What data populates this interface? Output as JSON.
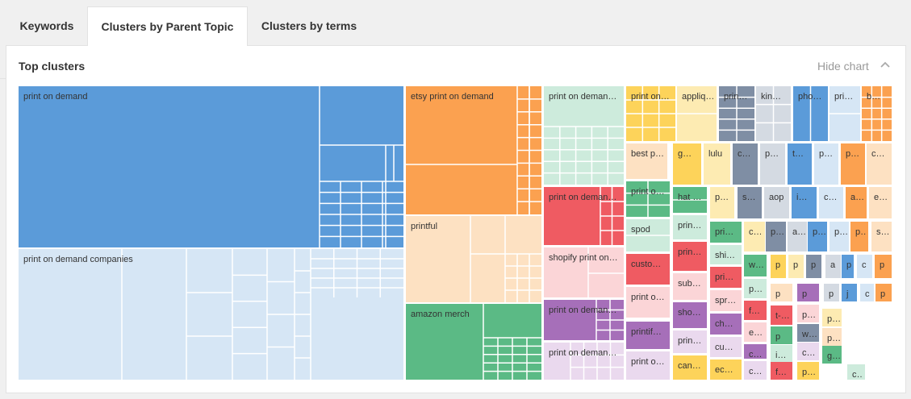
{
  "tabs": {
    "keywords": "Keywords",
    "parent_topic": "Clusters by Parent Topic",
    "terms": "Clusters by terms"
  },
  "card": {
    "title": "Top clusters",
    "hide_label": "Hide chart",
    "chevron_icon": "chevron-up-icon"
  },
  "colors": {
    "blue": "#5b9bd9",
    "light_blue": "#d6e6f5",
    "orange": "#fba150",
    "peach": "#fde1c2",
    "green": "#5bba85",
    "mint": "#cdebdc",
    "red": "#ef5b62",
    "pink": "#fbd5d7",
    "purple": "#a66fb9",
    "lilac": "#ead9ee",
    "yellow": "#fdd35a",
    "cream": "#fdebb2",
    "slate": "#7f8ea4",
    "gray": "#d4dae2"
  },
  "chart_data": {
    "type": "treemap",
    "title": "Top clusters",
    "nodes": [
      {
        "label": "print on demand",
        "color": "blue"
      },
      {
        "label": "print on demand companies",
        "color": "light_blue"
      },
      {
        "label": "etsy print on demand",
        "color": "orange"
      },
      {
        "label": "printful",
        "color": "peach"
      },
      {
        "label": "amazon merch",
        "color": "green"
      },
      {
        "label": "print on deman…",
        "color": "mint"
      },
      {
        "label": "print on deman…",
        "color": "red"
      },
      {
        "label": "shopify print on…",
        "color": "pink"
      },
      {
        "label": "print on deman…",
        "color": "purple"
      },
      {
        "label": "print on deman…",
        "color": "lilac"
      },
      {
        "label": "print on…",
        "color": "yellow"
      },
      {
        "label": "appliq…",
        "color": "cream"
      },
      {
        "label": "prin…",
        "color": "slate"
      },
      {
        "label": "kin…",
        "color": "gray"
      },
      {
        "label": "pho…",
        "color": "blue"
      },
      {
        "label": "pri…",
        "color": "light_blue"
      },
      {
        "label": "b…",
        "color": "orange"
      },
      {
        "label": "best p…",
        "color": "peach"
      },
      {
        "label": "print o…",
        "color": "green"
      },
      {
        "label": "spod",
        "color": "mint"
      },
      {
        "label": "custo…",
        "color": "red"
      },
      {
        "label": "print o…",
        "color": "pink"
      },
      {
        "label": "printif…",
        "color": "purple"
      },
      {
        "label": "print o…",
        "color": "lilac"
      },
      {
        "label": "g…",
        "color": "yellow"
      },
      {
        "label": "lulu",
        "color": "cream"
      },
      {
        "label": "c…",
        "color": "slate"
      },
      {
        "label": "p…",
        "color": "gray"
      },
      {
        "label": "t…",
        "color": "blue"
      },
      {
        "label": "p…",
        "color": "light_blue"
      },
      {
        "label": "p…",
        "color": "orange"
      },
      {
        "label": "c…",
        "color": "peach"
      },
      {
        "label": "hat …",
        "color": "green"
      },
      {
        "label": "prin…",
        "color": "mint"
      },
      {
        "label": "prin…",
        "color": "red"
      },
      {
        "label": "sub…",
        "color": "pink"
      },
      {
        "label": "sho…",
        "color": "purple"
      },
      {
        "label": "prin…",
        "color": "lilac"
      },
      {
        "label": "can…",
        "color": "yellow"
      },
      {
        "label": "p…",
        "color": "cream"
      },
      {
        "label": "s…",
        "color": "slate"
      },
      {
        "label": "aop",
        "color": "gray"
      },
      {
        "label": "i…",
        "color": "blue"
      },
      {
        "label": "c…",
        "color": "light_blue"
      },
      {
        "label": "a…",
        "color": "orange"
      },
      {
        "label": "e…",
        "color": "peach"
      },
      {
        "label": "pri…",
        "color": "green"
      },
      {
        "label": "shi…",
        "color": "mint"
      },
      {
        "label": "pri…",
        "color": "red"
      },
      {
        "label": "spr…",
        "color": "pink"
      },
      {
        "label": "ch…",
        "color": "purple"
      },
      {
        "label": "cu…",
        "color": "lilac"
      },
      {
        "label": "ec…",
        "color": "yellow"
      },
      {
        "label": "c…",
        "color": "cream"
      },
      {
        "label": "p…",
        "color": "slate"
      },
      {
        "label": "a…",
        "color": "gray"
      },
      {
        "label": "p…",
        "color": "blue"
      },
      {
        "label": "p…",
        "color": "light_blue"
      },
      {
        "label": "p…",
        "color": "orange"
      },
      {
        "label": "s…",
        "color": "peach"
      },
      {
        "label": "w…",
        "color": "green"
      },
      {
        "label": "p…",
        "color": "mint"
      },
      {
        "label": "f…",
        "color": "red"
      },
      {
        "label": "t-…",
        "color": "red"
      },
      {
        "label": "e…",
        "color": "pink"
      },
      {
        "label": "c…",
        "color": "purple"
      },
      {
        "label": "c…",
        "color": "lilac"
      },
      {
        "label": "p",
        "color": "yellow"
      },
      {
        "label": "p",
        "color": "cream"
      },
      {
        "label": "p",
        "color": "slate"
      },
      {
        "label": "a",
        "color": "gray"
      },
      {
        "label": "p",
        "color": "blue"
      },
      {
        "label": "c",
        "color": "light_blue"
      },
      {
        "label": "p",
        "color": "orange"
      },
      {
        "label": "p",
        "color": "peach"
      },
      {
        "label": "p",
        "color": "purple"
      },
      {
        "label": "p",
        "color": "gray"
      },
      {
        "label": "j",
        "color": "blue"
      },
      {
        "label": "c",
        "color": "light_blue"
      },
      {
        "label": "p",
        "color": "orange"
      },
      {
        "label": "p",
        "color": "green"
      },
      {
        "label": "i…",
        "color": "mint"
      },
      {
        "label": "f…",
        "color": "red"
      },
      {
        "label": "p…",
        "color": "pink"
      },
      {
        "label": "w…",
        "color": "slate"
      },
      {
        "label": "c…",
        "color": "lilac"
      },
      {
        "label": "p…",
        "color": "yellow"
      },
      {
        "label": "p…",
        "color": "cream"
      },
      {
        "label": "p…",
        "color": "peach"
      },
      {
        "label": "g…",
        "color": "green"
      },
      {
        "label": "c…",
        "color": "mint"
      },
      {
        "label": "p",
        "color": "purple"
      },
      {
        "label": "p",
        "color": "pink"
      },
      {
        "label": "c",
        "color": "light_blue"
      }
    ]
  }
}
